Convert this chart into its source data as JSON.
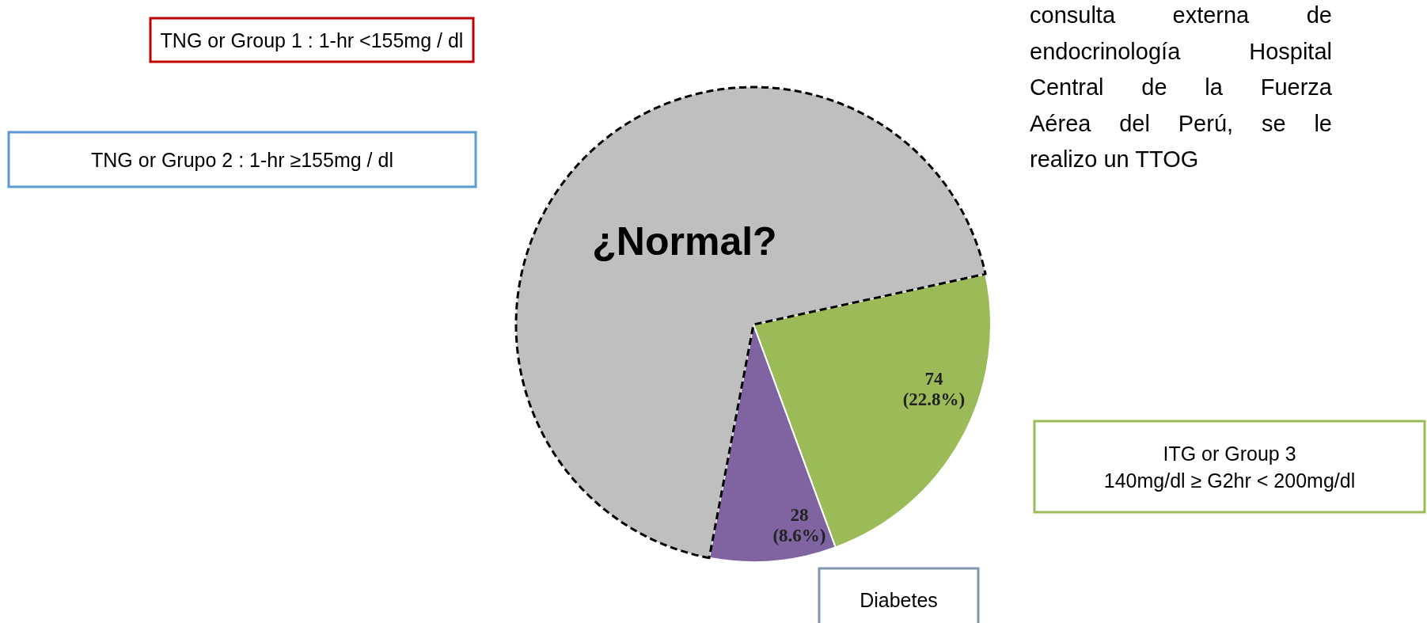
{
  "chart_data": {
    "type": "pie",
    "categories": [
      "ITG or Group 3\n140mg/dl ≥ G2hr < 200mg/dl",
      "Diabetes",
      "¿Normal?"
    ],
    "values": [
      22.8,
      8.6,
      68.6
    ],
    "colors": [
      "#9bbb59",
      "#8064a2",
      "#bfbfbf"
    ],
    "value_labels": [
      "74\n(22.8%)",
      "28\n(8.6%)",
      null
    ],
    "annotations": [
      "TNG or Group 1 : 1-hr <155mg / dl",
      "TNG or Grupo 2 : 1-hr ≥155mg / dl",
      "consulta externa de\nendocrinología Hospital\nCentral de la Fuerza\nAérea del Perú, se le\nrealizo un TTOG"
    ]
  }
}
